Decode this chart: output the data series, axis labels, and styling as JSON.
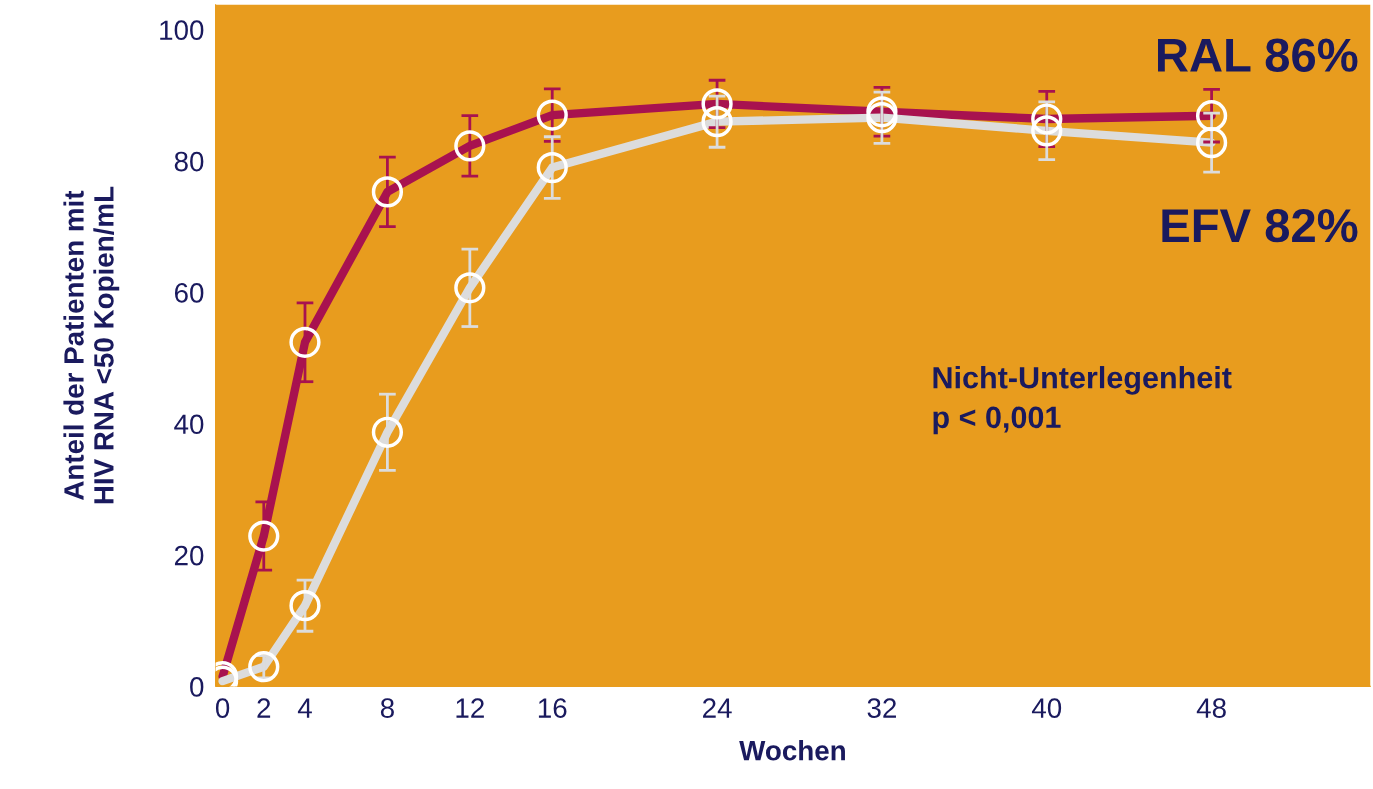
{
  "chart_data": {
    "type": "line",
    "xlabel": "Wochen",
    "ylabel": "Anteil der Patienten mit\nHIV RNA <50 Kopien/mL",
    "x": [
      0,
      2,
      4,
      8,
      12,
      16,
      24,
      32,
      40,
      48
    ],
    "xlim": [
      -0.34,
      55.7
    ],
    "xticks": [
      0,
      2,
      4,
      8,
      12,
      16,
      24,
      32,
      40,
      48
    ],
    "ylim": [
      0,
      103.8
    ],
    "yticks": [
      0,
      20,
      40,
      60,
      80,
      100
    ],
    "series": [
      {
        "color": "#a8124f",
        "values": [
          1.5,
          22.9,
          52.4,
          75.3,
          82.3,
          87.0,
          88.7,
          87.5,
          86.4,
          86.9
        ],
        "errors": [
          null,
          5.2,
          6,
          5.3,
          4.6,
          4,
          3.6,
          3.7,
          4.2,
          4
        ]
      },
      {
        "color": "#dcdcdc",
        "values": [
          0.8,
          3,
          12.3,
          38.7,
          60.7,
          79,
          86,
          86.6,
          84.6,
          82.8
        ],
        "errors": [
          null,
          1.7,
          3.9,
          5.8,
          5.9,
          4.7,
          3.9,
          3.9,
          4.4,
          4.5
        ]
      }
    ],
    "marker": "circle",
    "line_style": "solid",
    "grid": false,
    "legend": false,
    "annotations": [
      "RAL 86%",
      "EFV 82%",
      "Nicht-Unterlegenheit\np < 0,001"
    ]
  }
}
